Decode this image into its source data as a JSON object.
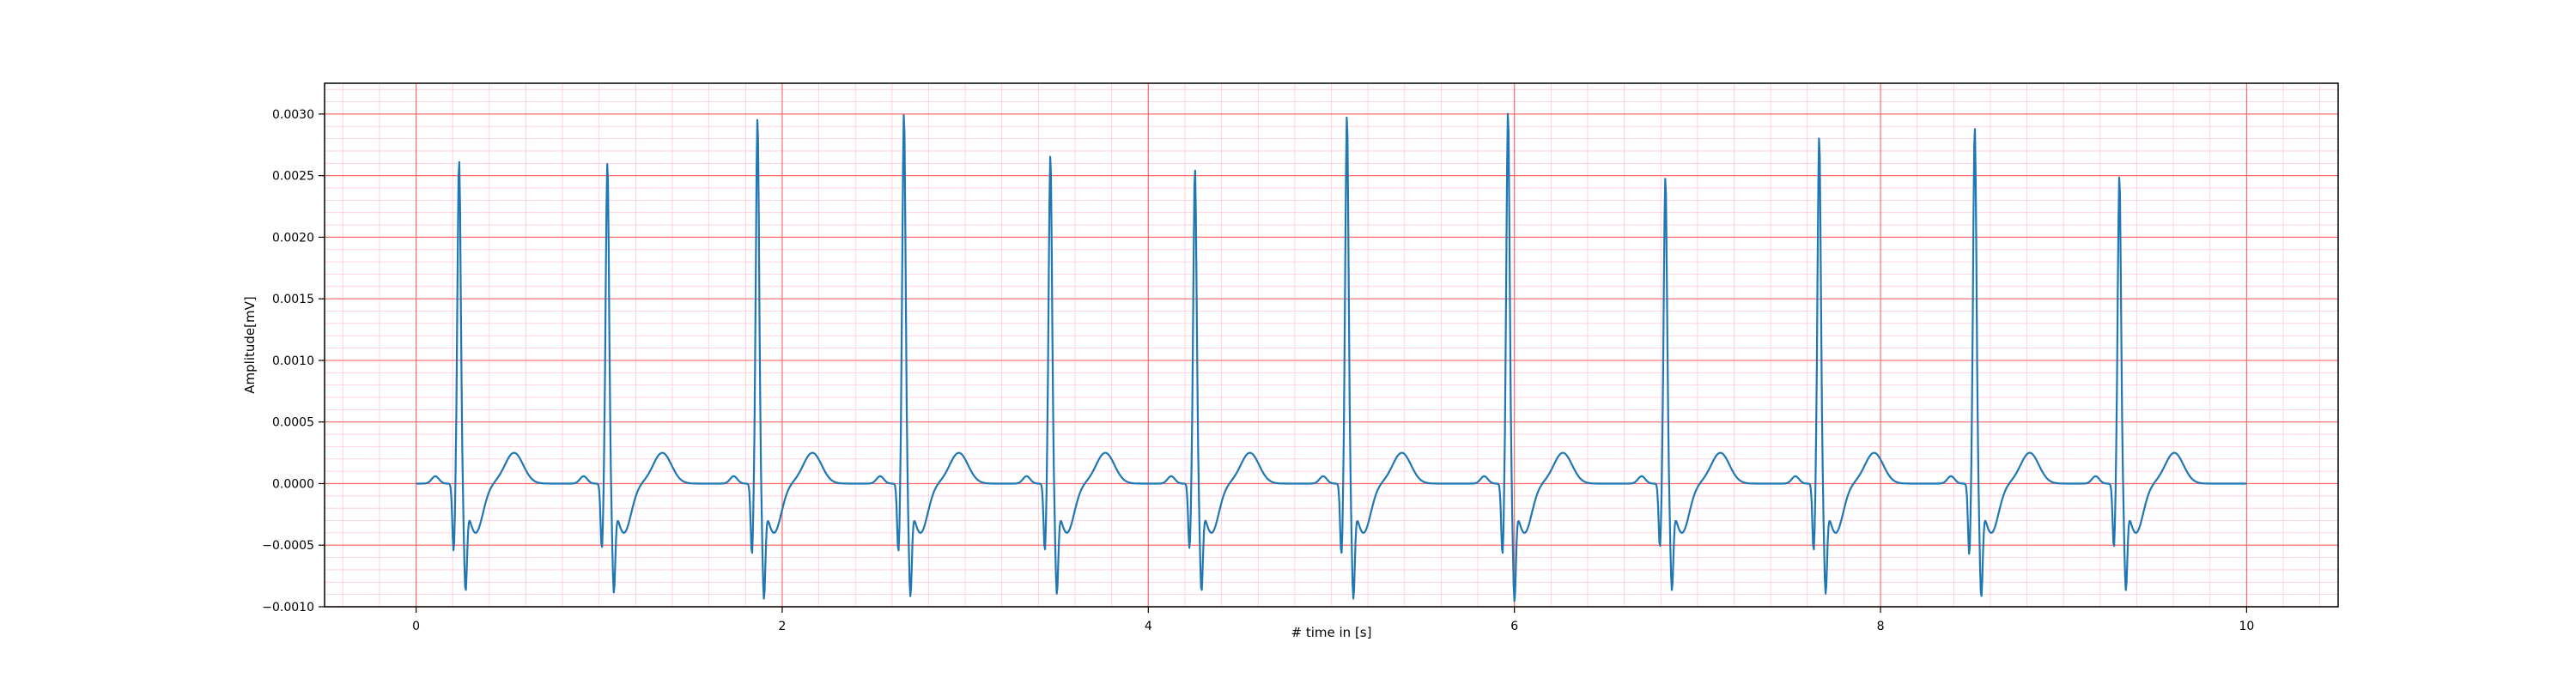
{
  "chart_data": {
    "type": "line",
    "title": "",
    "xlabel": "# time in [s]",
    "ylabel": "Amplitude[mV]",
    "xlim": [
      -0.5,
      10.5
    ],
    "ylim": [
      -0.001,
      0.00325
    ],
    "x_ticks": [
      0,
      2,
      4,
      6,
      8,
      10
    ],
    "x_tick_labels": [
      "0",
      "2",
      "4",
      "6",
      "8",
      "10"
    ],
    "y_ticks": [
      -0.001,
      -0.0005,
      0.0,
      0.0005,
      0.001,
      0.0015,
      0.002,
      0.0025,
      0.003
    ],
    "y_tick_labels": [
      "−0.0010",
      "−0.0005",
      "0.0000",
      "0.0005",
      "0.0010",
      "0.0015",
      "0.0020",
      "0.0025",
      "0.0030"
    ],
    "grid": "major and minor (red ECG-style grid)",
    "legend": "none",
    "colors": {
      "line": "#1f77b4",
      "major_grid": "#ff6b6b",
      "minor_grid": "#ffc8dc"
    },
    "sampling_interval_s": 0.004,
    "series": [
      {
        "beats": [
          {
            "t": 0.235,
            "peak": 0.00266,
            "q": -0.00055,
            "s": -0.00072
          },
          {
            "t": 1.045,
            "peak": 0.00264,
            "q": -0.00053,
            "s": -0.00073
          },
          {
            "t": 1.865,
            "peak": 0.003,
            "q": -0.00058,
            "s": -0.00078
          },
          {
            "t": 2.665,
            "peak": 0.00304,
            "q": -0.00056,
            "s": -0.00076
          },
          {
            "t": 3.465,
            "peak": 0.0027,
            "q": -0.00055,
            "s": -0.00074
          },
          {
            "t": 4.255,
            "peak": 0.00259,
            "q": -0.00053,
            "s": -0.00072
          },
          {
            "t": 5.085,
            "peak": 0.00302,
            "q": -0.00058,
            "s": -0.00078
          },
          {
            "t": 5.965,
            "peak": 0.00305,
            "q": -0.00058,
            "s": -0.0008
          },
          {
            "t": 6.825,
            "peak": 0.00252,
            "q": -0.00052,
            "s": -0.00071
          },
          {
            "t": 7.665,
            "peak": 0.00285,
            "q": -0.00055,
            "s": -0.00074
          },
          {
            "t": 8.515,
            "peak": 0.00293,
            "q": -0.00058,
            "s": -0.00077
          },
          {
            "t": 9.305,
            "peak": 0.00253,
            "q": -0.00052,
            "s": -0.00071
          }
        ],
        "t_wave": {
          "amplitude": 0.00025,
          "delay_s": 0.3
        },
        "st_dip": {
          "amplitude": -0.0004,
          "delay_s": 0.09
        },
        "x_end": 10.0
      }
    ]
  }
}
